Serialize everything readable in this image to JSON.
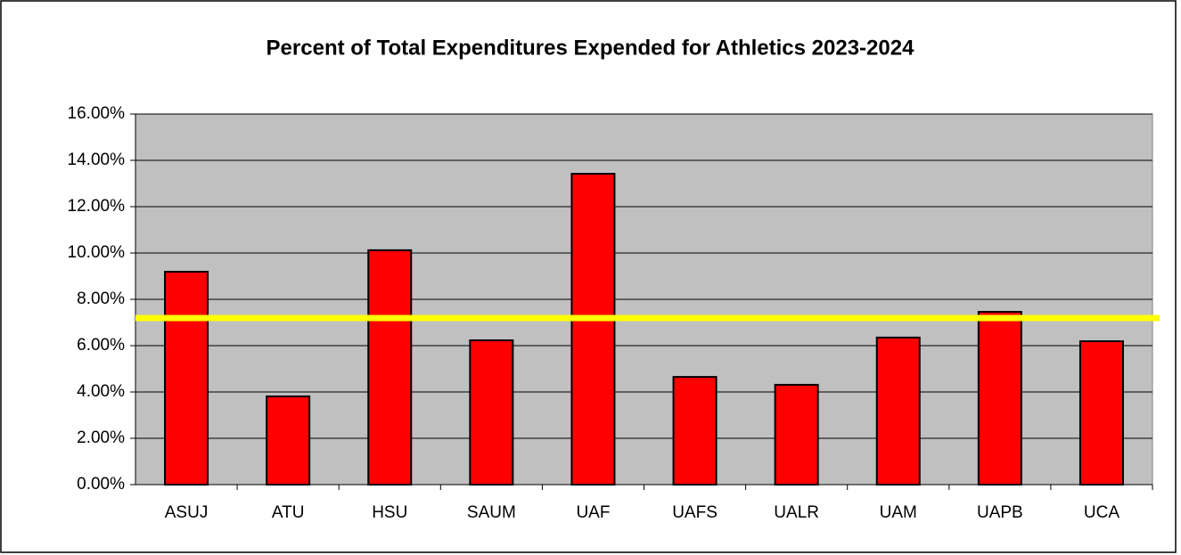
{
  "chart_data": {
    "type": "bar",
    "title": "Percent of Total Expenditures Expended for Athletics 2023-2024",
    "categories": [
      "ASUJ",
      "ATU",
      "HSU",
      "SAUM",
      "UAF",
      "UAFS",
      "UALR",
      "UAM",
      "UAPB",
      "UCA"
    ],
    "values": [
      9.19,
      3.81,
      10.12,
      6.23,
      13.42,
      4.65,
      4.31,
      6.35,
      7.46,
      6.19
    ],
    "color": "#ff0000",
    "reference_line": 7.19,
    "reference_color": "#ffff00",
    "ylim": [
      0,
      16
    ],
    "yticks": [
      {
        "value": 0,
        "label": "0.00%"
      },
      {
        "value": 2,
        "label": "2.00%"
      },
      {
        "value": 4,
        "label": "4.00%"
      },
      {
        "value": 6,
        "label": "6.00%"
      },
      {
        "value": 8,
        "label": "8.00%"
      },
      {
        "value": 10,
        "label": "10.00%"
      },
      {
        "value": 12,
        "label": "12.00%"
      },
      {
        "value": 14,
        "label": "14.00%"
      },
      {
        "value": 16,
        "label": "16.00%"
      }
    ],
    "grid": true,
    "plot_background": "#c0c0c0"
  }
}
